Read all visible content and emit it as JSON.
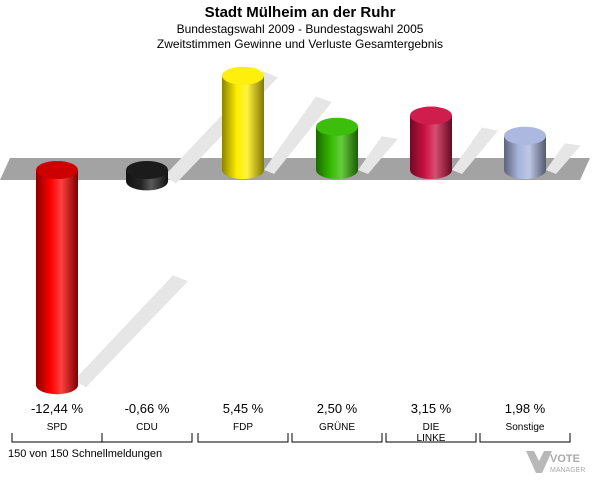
{
  "chart_data": {
    "type": "bar",
    "title": "Stadt Mülheim an der Ruhr",
    "subtitle": "Bundestagswahl 2009 - Bundestagswahl 2005",
    "subtitle2": "Zweitstimmen Gewinne und Verluste Gesamtergebnis",
    "categories": [
      "SPD",
      "CDU",
      "FDP",
      "GRÜNE",
      "DIE LINKE",
      "Sonstige"
    ],
    "value_labels": [
      "-12,44 %",
      "-0,66 %",
      "5,45 %",
      "2,50 %",
      "3,15 %",
      "1,98 %"
    ],
    "values": [
      -12.44,
      -0.66,
      5.45,
      2.5,
      3.15,
      1.98
    ],
    "colors": [
      "#ff0000",
      "#222222",
      "#ffee00",
      "#33bb00",
      "#cc1144",
      "#a8b4dd"
    ]
  },
  "footer": {
    "text": "150 von 150 Schnellmeldungen"
  },
  "logo": {
    "line1": "VOTE",
    "line2": "MANAGER"
  }
}
